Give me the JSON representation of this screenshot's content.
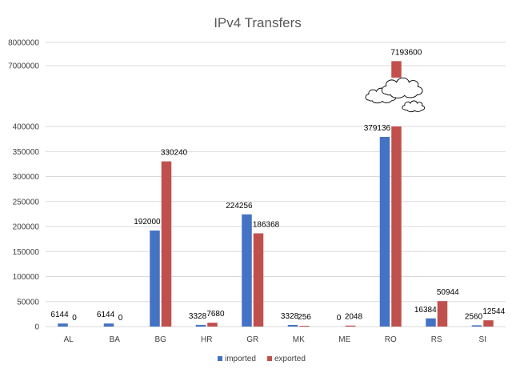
{
  "chart_data": {
    "type": "bar",
    "title": "IPv4 Transfers",
    "categories": [
      "AL",
      "BA",
      "BG",
      "HR",
      "GR",
      "MK",
      "ME",
      "RO",
      "RS",
      "SI"
    ],
    "series": [
      {
        "name": "imported",
        "values": [
          6144,
          6144,
          192000,
          3328,
          224256,
          3328,
          0,
          379136,
          16384,
          2560
        ]
      },
      {
        "name": "exported",
        "values": [
          0,
          0,
          330240,
          7680,
          186368,
          256,
          2048,
          7193600,
          50944,
          12544
        ]
      }
    ],
    "data_labels": {
      "imported": [
        "6144",
        "6144",
        "192000",
        "3328",
        "224256",
        "3328",
        "0",
        "379136",
        "16384",
        "2560"
      ],
      "exported": [
        "0",
        "0",
        "330240",
        "7680",
        "186368",
        "256",
        "2048",
        "7193600",
        "50944",
        "12544"
      ]
    },
    "y_ticks_lower": [
      0,
      50000,
      100000,
      150000,
      200000,
      250000,
      300000,
      350000,
      400000
    ],
    "y_ticks_upper": [
      7000000,
      8000000
    ],
    "ylim_lower": [
      0,
      400000
    ],
    "ylim_upper": [
      7000000,
      8000000
    ],
    "broken_axis": true,
    "grid": true,
    "legend": "bottom",
    "colors": {
      "imported": "#4472c4",
      "exported": "#c0504d"
    }
  }
}
